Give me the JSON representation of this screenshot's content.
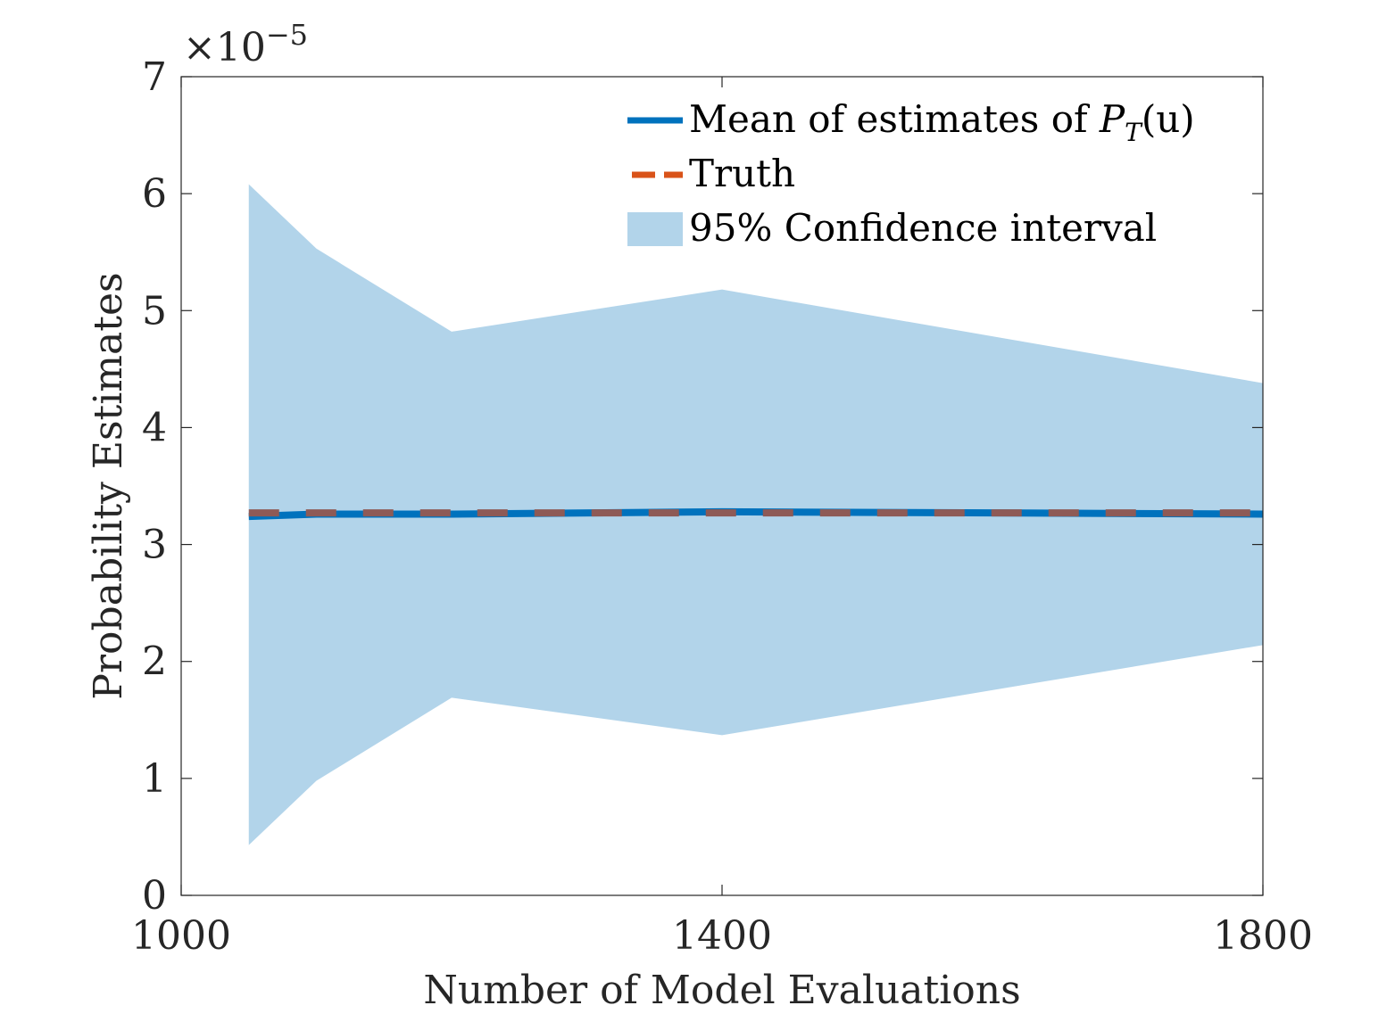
{
  "chart_data": {
    "type": "line",
    "xlabel": "Number of Model Evaluations",
    "ylabel": "Probability Estimates",
    "xlim": [
      1000,
      1800
    ],
    "ylim": [
      0,
      7
    ],
    "xticks": [
      1000,
      1400,
      1800
    ],
    "yticks": [
      0,
      1,
      2,
      3,
      4,
      5,
      6,
      7
    ],
    "y_exponent": {
      "base": "×10",
      "power": "−5"
    },
    "legend": {
      "placement": "top-right",
      "entries": [
        {
          "label": "Mean of estimates of ",
          "math": "P",
          "sub": "T",
          "suffix": "(u)"
        },
        {
          "label": "Truth"
        },
        {
          "label": "95% Confidence interval"
        }
      ]
    },
    "series": [
      {
        "name": "Mean of estimates of P_T(u)",
        "style": "solid",
        "x": [
          1050,
          1100,
          1200,
          1400,
          1800
        ],
        "y": [
          3.24,
          3.26,
          3.26,
          3.28,
          3.26
        ]
      },
      {
        "name": "Truth",
        "style": "dashed",
        "x": [
          1050,
          1800
        ],
        "y": [
          3.27,
          3.27
        ]
      }
    ],
    "confidence_band": {
      "name": "95% Confidence interval",
      "x": [
        1050,
        1100,
        1200,
        1400,
        1800
      ],
      "upper": [
        6.08,
        5.53,
        4.82,
        5.18,
        4.38
      ],
      "lower": [
        0.43,
        0.98,
        1.69,
        1.37,
        2.14
      ]
    },
    "colors": {
      "mean": "#0072BD",
      "truth": "#D95319",
      "truth_overlay": "#8E5A56",
      "band": "#B2D4EA",
      "axis": "#262626"
    }
  }
}
